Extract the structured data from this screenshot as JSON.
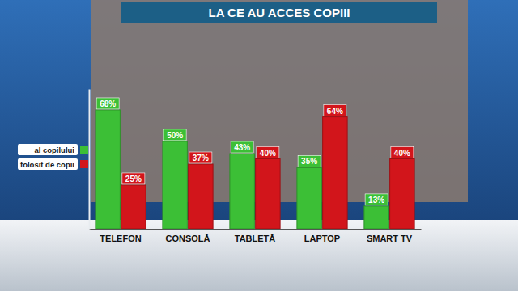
{
  "chart_data": {
    "type": "bar",
    "title": "LA CE AU ACCES COPIII",
    "categories": [
      "TELEFON",
      "CONSOLĂ",
      "TABLETĂ",
      "LAPTOP",
      "SMART TV"
    ],
    "series": [
      {
        "name": "al copilului",
        "color": "#3cbf36",
        "values": [
          68,
          50,
          43,
          35,
          13
        ],
        "value_labels": [
          "68%",
          "50%",
          "43%",
          "35%",
          "13%"
        ]
      },
      {
        "name": "folosit de copii",
        "color": "#d2151b",
        "values": [
          25,
          37,
          40,
          64,
          40
        ],
        "value_labels": [
          "25%",
          "37%",
          "40%",
          "64%",
          "40%"
        ]
      }
    ],
    "ylim": [
      0,
      80
    ],
    "data_labels": true,
    "tick_labels": "x",
    "legend": "left",
    "grid": false
  }
}
